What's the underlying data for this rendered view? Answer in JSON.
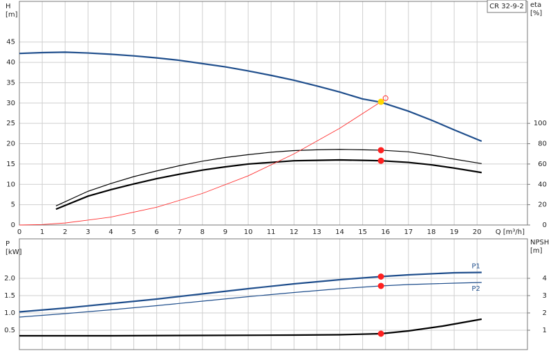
{
  "chart_data": [
    {
      "type": "line",
      "title": "CR 32-9-2",
      "ylabel": [
        "H",
        "[m]"
      ],
      "y2label": [
        "eta",
        "[%]"
      ],
      "xlabel": "Q [m³/h]",
      "xlim": [
        0,
        22.2
      ],
      "xticks": [
        0,
        1,
        2,
        3,
        4,
        5,
        6,
        7,
        8,
        9,
        10,
        11,
        12,
        13,
        14,
        15,
        16,
        17,
        18,
        19,
        20
      ],
      "ylim": [
        0,
        55
      ],
      "yticks": [
        0,
        5,
        10,
        15,
        20,
        25,
        30,
        35,
        40,
        45
      ],
      "y2lim": [
        0,
        220
      ],
      "y2ticks": [
        0,
        20,
        40,
        60,
        80,
        100
      ],
      "grid": true,
      "series": [
        {
          "color": "#1f4e8c",
          "line": "thick",
          "axis": "y",
          "x": [
            0,
            1,
            2,
            3,
            4,
            5,
            6,
            7,
            8,
            9,
            10,
            11,
            12,
            13,
            14,
            15,
            15.8,
            17,
            18,
            19,
            20.2
          ],
          "values": [
            42.2,
            42.4,
            42.5,
            42.3,
            42.0,
            41.6,
            41.1,
            40.5,
            39.7,
            38.9,
            37.9,
            36.8,
            35.6,
            34.2,
            32.7,
            31.0,
            30.2,
            28.0,
            25.8,
            23.4,
            20.6
          ]
        },
        {
          "color": "#000000",
          "line": "thin",
          "axis": "y2",
          "x": [
            1.6,
            3,
            4,
            5,
            6,
            7,
            8,
            9,
            10,
            11,
            12,
            13,
            14,
            15,
            15.8,
            17,
            18,
            19,
            20.2
          ],
          "values": [
            18.8,
            33.2,
            40.8,
            47.6,
            53.2,
            58.4,
            62.8,
            66.4,
            69.2,
            71.6,
            73.2,
            74,
            74.4,
            74,
            73.6,
            72,
            68.8,
            64.8,
            60.4
          ]
        },
        {
          "color": "#000000",
          "line": "thick",
          "axis": "y2",
          "x": [
            1.6,
            3,
            4,
            5,
            6,
            7,
            8,
            9,
            10,
            11,
            12,
            13,
            14,
            15,
            15.8,
            17,
            18,
            19,
            20.2
          ],
          "values": [
            15.6,
            28.4,
            34.8,
            40.4,
            45.6,
            50,
            54,
            57.2,
            60,
            61.6,
            63.2,
            63.6,
            64,
            63.6,
            63.2,
            61.6,
            59.2,
            56,
            51.6
          ]
        },
        {
          "color": "#ff3030",
          "line": "hair",
          "axis": "y",
          "x": [
            0,
            1,
            2,
            4,
            6,
            8,
            10,
            12,
            14,
            15.8
          ],
          "values": [
            0,
            0.12,
            0.49,
            1.94,
            4.37,
            7.77,
            12.1,
            17.5,
            23.8,
            30.3
          ]
        }
      ],
      "markers": [
        {
          "x": 15.8,
          "y": 30.3,
          "axis": "y",
          "color": "#ffd700",
          "style": "filled"
        },
        {
          "x": 16,
          "y": 31.2,
          "axis": "y",
          "color": "#ff3030",
          "style": "open"
        },
        {
          "x": 15.8,
          "y": 73.6,
          "axis": "y2",
          "color": "#ff2020",
          "style": "filled"
        },
        {
          "x": 15.8,
          "y": 63.2,
          "axis": "y2",
          "color": "#ff2020",
          "style": "filled"
        }
      ]
    },
    {
      "type": "line",
      "ylabel": [
        "P",
        "[kW]"
      ],
      "y2label": [
        "NPSH",
        "[m]"
      ],
      "xlim": [
        0,
        22.2
      ],
      "xticks": [
        0,
        1,
        2,
        3,
        4,
        5,
        6,
        7,
        8,
        9,
        10,
        11,
        12,
        13,
        14,
        15,
        16,
        17,
        18,
        19,
        20
      ],
      "ylim": [
        -0.06,
        3.14
      ],
      "yticks": [
        0.5,
        {
          "value": 1,
          "label": "1.0"
        },
        1.5,
        {
          "value": 2,
          "label": "2.0"
        }
      ],
      "y2lim": [
        -0.12,
        6.28
      ],
      "y2ticks": [
        1,
        2,
        3,
        4
      ],
      "grid": true,
      "series": [
        {
          "name": "P1",
          "color": "#1f4e8c",
          "line": "thick",
          "axis": "y",
          "x": [
            0,
            2,
            4,
            6,
            8,
            10,
            12,
            14,
            15.8,
            17,
            19,
            20.2
          ],
          "values": [
            1.03,
            1.14,
            1.27,
            1.4,
            1.55,
            1.7,
            1.84,
            1.96,
            2.05,
            2.1,
            2.16,
            2.17
          ]
        },
        {
          "name": "P2",
          "color": "#1f4e8c",
          "line": "thin",
          "axis": "y",
          "x": [
            0,
            2,
            4,
            6,
            8,
            10,
            12,
            14,
            15.8,
            17,
            19,
            20.2
          ],
          "values": [
            0.88,
            0.98,
            1.09,
            1.21,
            1.34,
            1.47,
            1.59,
            1.7,
            1.78,
            1.82,
            1.86,
            1.88
          ]
        },
        {
          "color": "#000000",
          "line": "thick",
          "axis": "y2",
          "x": [
            0,
            4,
            8,
            12,
            14,
            15.8,
            17,
            18.5,
            20.2
          ],
          "values": [
            0.68,
            0.68,
            0.7,
            0.72,
            0.74,
            0.8,
            0.96,
            1.24,
            1.64
          ]
        }
      ],
      "markers": [
        {
          "x": 15.8,
          "y": 2.05,
          "axis": "y",
          "color": "#ff2020",
          "style": "filled"
        },
        {
          "x": 15.8,
          "y": 1.78,
          "axis": "y",
          "color": "#ff2020",
          "style": "filled"
        },
        {
          "x": 15.8,
          "y": 0.8,
          "axis": "y2",
          "color": "#ff2020",
          "style": "filled"
        }
      ]
    }
  ]
}
